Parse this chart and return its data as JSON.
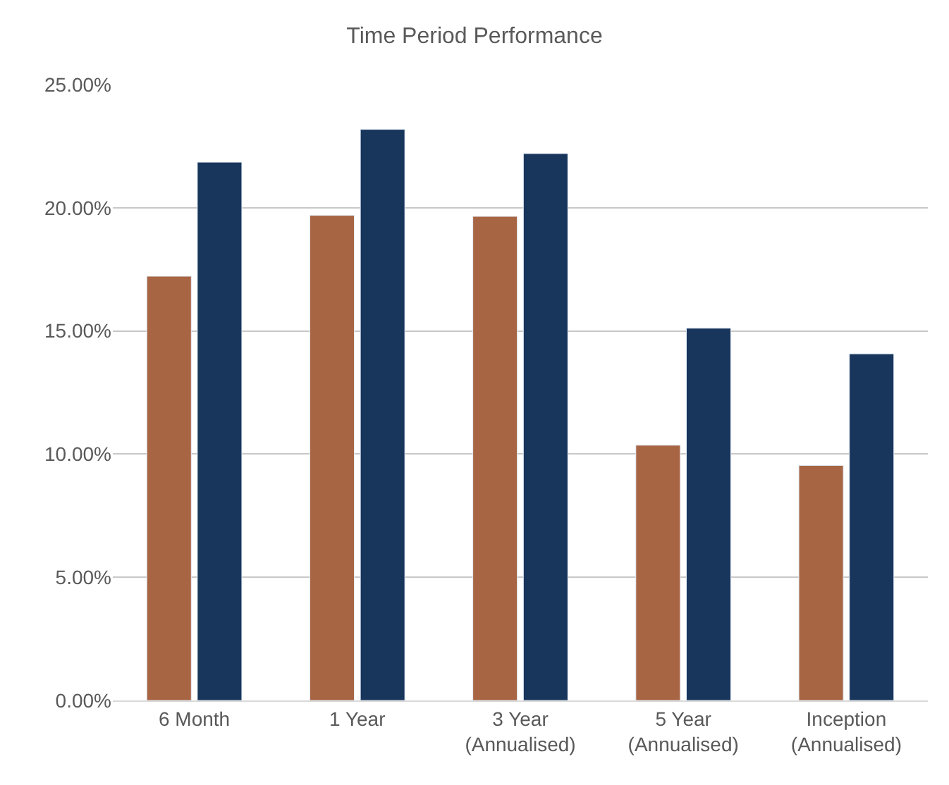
{
  "chart_data": {
    "type": "bar",
    "title": "Time Period Performance",
    "categories": [
      "6 Month",
      "1 Year",
      "3 Year\n(Annualised)",
      "5 Year\n(Annualised)",
      "Inception\n(Annualised)"
    ],
    "series": [
      {
        "color": "#a86544",
        "values": [
          17.22,
          19.69,
          19.65,
          10.36,
          9.54
        ]
      },
      {
        "color": "#18365c",
        "values": [
          21.85,
          23.18,
          22.2,
          15.11,
          14.07
        ]
      }
    ],
    "ylim": [
      0,
      25
    ],
    "yticks": [
      {
        "value": 0,
        "label": "0.00%"
      },
      {
        "value": 5,
        "label": "5.00%"
      },
      {
        "value": 10,
        "label": "10.00%"
      },
      {
        "value": 15,
        "label": "15.00%"
      },
      {
        "value": 20,
        "label": "20.00%"
      },
      {
        "value": 25,
        "label": "25.00%"
      }
    ],
    "grid": "y"
  }
}
